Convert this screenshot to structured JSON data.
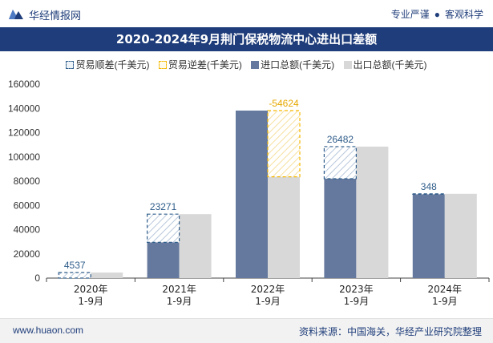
{
  "header": {
    "brand": "华经情报网",
    "slogan_left": "专业严谨",
    "slogan_sep": "●",
    "slogan_right": "客观科学"
  },
  "title": "2020-2024年9月荆门保税物流中心进出口差额",
  "footer": {
    "site": "www.huaon.com",
    "source": "资料来源：中国海关，华经产业研究院整理"
  },
  "colors": {
    "import": "#65799e",
    "export": "#d8d8d8",
    "surplus": "#2f5d8a",
    "deficit": "#f5b800",
    "title_bg": "#1f3d7a"
  },
  "chart_data": {
    "type": "bar",
    "title": "2020-2024年9月荆门保税物流中心进出口差额",
    "categories": [
      "2020年\n1-9月",
      "2021年\n1-9月",
      "2022年\n1-9月",
      "2023年\n1-9月",
      "2024年\n1-9月"
    ],
    "legend": [
      "贸易顺差(千美元)",
      "贸易逆差(千美元)",
      "进口总额(千美元)",
      "出口总额(千美元)"
    ],
    "series": [
      {
        "name": "进口总额(千美元)",
        "values": [
          0,
          29500,
          138200,
          82000,
          69200
        ]
      },
      {
        "name": "出口总额(千美元)",
        "values": [
          4537,
          52771,
          83576,
          108482,
          69548
        ]
      }
    ],
    "balance": [
      4537,
      23271,
      -54624,
      26482,
      348
    ],
    "balance_labels": [
      "4537",
      "23271",
      "-54624",
      "26482",
      "348"
    ],
    "yticks": [
      "0",
      "20000",
      "40000",
      "60000",
      "80000",
      "100000",
      "120000",
      "140000",
      "160000"
    ],
    "ylim": [
      0,
      160000
    ],
    "xlabel": "",
    "ylabel": "",
    "legend_position": "top"
  }
}
